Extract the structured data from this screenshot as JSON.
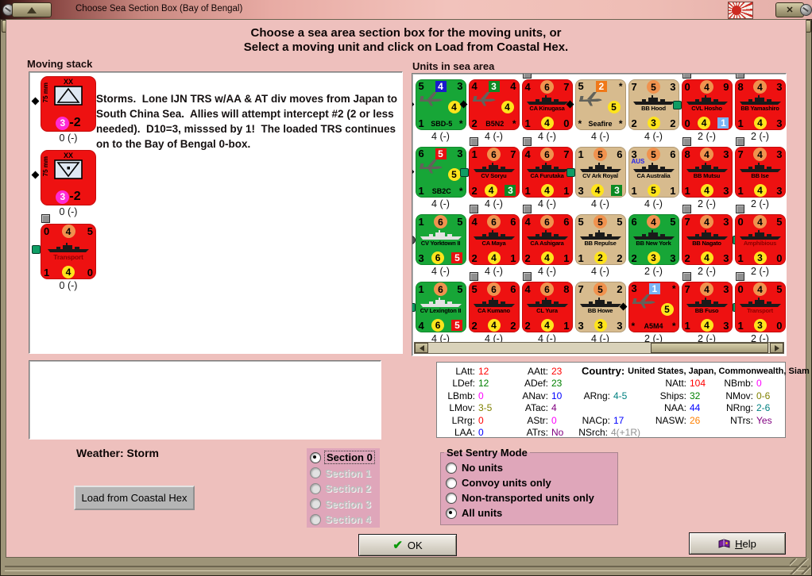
{
  "window": {
    "title": "Choose Sea Section Box (Bay of Bengal)"
  },
  "header": {
    "line1": "Choose a sea area section box for the moving units, or",
    "line2": "Select a moving unit and click on Load from Coastal Hex."
  },
  "moving_stack": {
    "label": "Moving stack",
    "description": "Storms.  Lone IJN TRS w/AA & AT div moves from Japan to South China Sea.  Allies will attempt intercept #2 (2 or less needed).  D10=3, misssed by 1!  The loaded TRS continues on to the Bay of Bengal 0-box.",
    "units": [
      {
        "kind": "ground",
        "bg": "red",
        "top": "XX",
        "side": "75 mm",
        "symbol": "aa",
        "val": "3",
        "suffix": "-2",
        "label": "0 (-)",
        "marks": [
          "diamond-left"
        ]
      },
      {
        "kind": "ground",
        "bg": "red",
        "top": "XX",
        "side": "75 mm",
        "symbol": "at",
        "val": "3",
        "suffix": "-2",
        "label": "0 (-)",
        "marks": [
          "diamond-left"
        ]
      },
      {
        "kind": "ship",
        "big": true,
        "bg": "red",
        "tl": "0",
        "tm": "4",
        "tr": "5",
        "name": "Transport",
        "name_color": "darkred",
        "bl": "1",
        "bm": "4",
        "br": "0",
        "label": "0 (-)",
        "marks": [
          "gray-square-top",
          "green-dot-left"
        ]
      }
    ]
  },
  "sea_area": {
    "label": "Units in sea area",
    "units": [
      {
        "kind": "plane",
        "bg": "green",
        "tl": "5",
        "tm": "4",
        "tm_badge": "navy-square",
        "tr": "3",
        "wing": "4",
        "bl": "1",
        "bname": "SBD-5",
        "br": "*",
        "label": "4 (-)",
        "marks": [
          "diamond-left"
        ]
      },
      {
        "kind": "plane",
        "bg": "red",
        "tl": "4",
        "tm": "3",
        "tm_badge": "green-square",
        "tr": "4",
        "wing": "4",
        "bl": "2",
        "bname": "B5N2",
        "br": "*",
        "label": "4 (-)",
        "marks": [
          "diamond-left"
        ]
      },
      {
        "kind": "ship",
        "bg": "red",
        "tl": "4",
        "tm": "6",
        "tr": "7",
        "name": "CA Kinugasa",
        "bl": "1",
        "bm": "4",
        "br": "0",
        "label": "4 (-)",
        "marks": [
          "gray-square-top"
        ]
      },
      {
        "kind": "plane",
        "bg": "tan",
        "tl": "5",
        "tm": "2",
        "tm_badge": "orange-square",
        "tr": "*",
        "wing": "5",
        "bl": "*",
        "bname": "Seafire",
        "br": "*",
        "label": "4 (-)",
        "marks": [
          "diamond-left"
        ]
      },
      {
        "kind": "ship",
        "bg": "tan",
        "tl": "7",
        "tm": "5",
        "tr": "3",
        "name": "BB Hood",
        "bl": "2",
        "bm": "3",
        "br": "2",
        "label": "4 (-)",
        "marks": []
      },
      {
        "kind": "ship",
        "bg": "red",
        "tl": "0",
        "tm": "4",
        "tr": "9",
        "name": "CVL Hosho",
        "bl": "0",
        "bm": "4",
        "br": "1",
        "br_badge": "lightblue-square",
        "label": "2 (-)",
        "marks": [
          "gray-square-top",
          "green-dot-left"
        ]
      },
      {
        "kind": "ship",
        "bg": "red",
        "tl": "8",
        "tm": "4",
        "tr": "3",
        "name": "BB Yamashiro",
        "bl": "1",
        "bm": "4",
        "br": "3",
        "label": "2 (-)",
        "marks": [
          "gray-square-top"
        ]
      },
      {
        "kind": "plane",
        "bg": "green",
        "tl": "6",
        "tm": "5",
        "tm_badge": "red-square",
        "tr": "3",
        "wing": "5",
        "bl": "1",
        "bname": "SB2C",
        "br": "*",
        "label": "4 (-)",
        "marks": [
          "diamond-left"
        ]
      },
      {
        "kind": "ship",
        "bg": "red",
        "tl": "1",
        "tm": "6",
        "tr": "7",
        "name": "CV Soryu",
        "bl": "2",
        "bm": "4",
        "br": "3",
        "br_badge": "green-square",
        "label": "4 (-)",
        "marks": [
          "gray-square-top",
          "green-dot-left"
        ]
      },
      {
        "kind": "ship",
        "bg": "red",
        "tl": "4",
        "tm": "6",
        "tr": "7",
        "name": "CA Furutaka",
        "bl": "1",
        "bm": "4",
        "br": "1",
        "label": "4 (-)",
        "marks": [
          "gray-square-top"
        ]
      },
      {
        "kind": "ship",
        "bg": "tan",
        "tl": "1",
        "tm": "5",
        "tr": "6",
        "name": "CV Ark Royal",
        "bl": "3",
        "bm": "4",
        "br": "3",
        "br_badge": "green-square",
        "label": "4 (-)",
        "marks": [
          "green-dot-left"
        ]
      },
      {
        "kind": "ship",
        "bg": "tan",
        "tl": "3",
        "tm": "5",
        "tr": "6",
        "name": "CA Australia",
        "extra": "AUS",
        "bl": "1",
        "bm": "5",
        "br": "1",
        "label": "4 (-)",
        "marks": []
      },
      {
        "kind": "ship",
        "bg": "red",
        "tl": "8",
        "tm": "4",
        "tr": "3",
        "name": "BB Mutsu",
        "bl": "1",
        "bm": "4",
        "br": "3",
        "label": "2 (-)",
        "marks": [
          "gray-square-top"
        ]
      },
      {
        "kind": "ship",
        "bg": "red",
        "tl": "7",
        "tm": "4",
        "tr": "3",
        "name": "BB Ise",
        "bl": "1",
        "bm": "4",
        "br": "3",
        "label": "2 (-)",
        "marks": [
          "gray-square-top"
        ]
      },
      {
        "kind": "ship",
        "bg": "green",
        "tl": "1",
        "tm": "6",
        "tr": "5",
        "name": "CV Yorktown II",
        "icon_light": true,
        "bl": "3",
        "bm": "6",
        "br": "5",
        "br_badge": "red-square",
        "label": "4 (-)",
        "marks": [
          "gray-dot-left"
        ]
      },
      {
        "kind": "ship",
        "bg": "red",
        "tl": "4",
        "tm": "6",
        "tr": "6",
        "name": "CA Maya",
        "bl": "2",
        "bm": "4",
        "br": "1",
        "label": "4 (-)",
        "marks": [
          "gray-square-top"
        ]
      },
      {
        "kind": "ship",
        "bg": "red",
        "tl": "4",
        "tm": "6",
        "tr": "6",
        "name": "CA Ashigara",
        "bl": "2",
        "bm": "4",
        "br": "1",
        "label": "4 (-)",
        "marks": [
          "gray-square-top"
        ]
      },
      {
        "kind": "ship",
        "bg": "tan",
        "tl": "5",
        "tm": "5",
        "tr": "5",
        "name": "BB Repulse",
        "bl": "1",
        "bm": "2",
        "br": "2",
        "label": "4 (-)",
        "marks": []
      },
      {
        "kind": "ship",
        "bg": "green",
        "tl": "6",
        "tm": "4",
        "tr": "5",
        "name": "BB New York",
        "bl": "2",
        "bm": "3",
        "br": "3",
        "label": "2 (-)",
        "marks": []
      },
      {
        "kind": "ship",
        "bg": "red",
        "tl": "7",
        "tm": "4",
        "tr": "3",
        "name": "BB Nagato",
        "bl": "2",
        "bm": "4",
        "br": "3",
        "label": "2 (-)",
        "marks": [
          "gray-square-top",
          "green-dot-right"
        ]
      },
      {
        "kind": "ship",
        "bg": "red",
        "tl": "0",
        "tm": "4",
        "tr": "5",
        "name": "Amphibious",
        "name_color": "darkred",
        "bl": "1",
        "bm": "3",
        "br": "0",
        "label": "2 (-)",
        "marks": [
          "gray-square-top"
        ]
      },
      {
        "kind": "ship",
        "bg": "green",
        "tl": "1",
        "tm": "6",
        "tr": "5",
        "name": "CV Lexington II",
        "icon_light": true,
        "bl": "4",
        "bm": "6",
        "br": "5",
        "br_badge": "red-square",
        "label": "4 (-)",
        "marks": [
          "green-dot-left"
        ]
      },
      {
        "kind": "ship",
        "bg": "red",
        "tl": "5",
        "tm": "6",
        "tr": "6",
        "name": "CA Kumano",
        "bl": "2",
        "bm": "4",
        "br": "2",
        "label": "4 (-)",
        "marks": [
          "gray-square-top"
        ]
      },
      {
        "kind": "ship",
        "bg": "red",
        "tl": "4",
        "tm": "6",
        "tr": "8",
        "name": "CL Yura",
        "bl": "2",
        "bm": "4",
        "br": "1",
        "label": "4 (-)",
        "marks": [
          "gray-square-top"
        ]
      },
      {
        "kind": "ship",
        "bg": "tan",
        "tl": "7",
        "tm": "5",
        "tr": "2",
        "name": "BB Howe",
        "bl": "3",
        "bm": "3",
        "br": "3",
        "label": "4 (-)",
        "marks": []
      },
      {
        "kind": "plane",
        "bg": "red",
        "tl": "3",
        "tm": "1",
        "tm_badge": "lightblue-square",
        "tr": "*",
        "wing": "5",
        "bl": "*",
        "bname": "A5M4",
        "br": "*",
        "label": "2 (-)",
        "marks": [
          "diamond-left"
        ]
      },
      {
        "kind": "ship",
        "bg": "red",
        "tl": "7",
        "tm": "4",
        "tr": "3",
        "name": "BB Fuso",
        "bl": "1",
        "bm": "4",
        "br": "3",
        "label": "2 (-)",
        "marks": [
          "gray-square-top",
          "green-dot-right"
        ]
      },
      {
        "kind": "ship",
        "bg": "red",
        "tl": "0",
        "tm": "4",
        "tr": "5",
        "name": "Transport",
        "name_color": "darkred",
        "bl": "1",
        "bm": "3",
        "br": "0",
        "label": "2 (-)",
        "marks": [
          "gray-square-top"
        ]
      }
    ]
  },
  "stats": {
    "country_label": "Country:",
    "country_value": "United States, Japan, Commonwealth, Siam",
    "items": [
      {
        "row": 1,
        "col": 1,
        "label": "LAtt:",
        "value": "12",
        "color": "#ff0000"
      },
      {
        "row": 1,
        "col": 2,
        "label": "AAtt:",
        "value": "23",
        "color": "#ff0000"
      },
      {
        "row": 2,
        "col": 1,
        "label": "LDef:",
        "value": "12",
        "color": "#008000"
      },
      {
        "row": 2,
        "col": 2,
        "label": "ADef:",
        "value": "23",
        "color": "#008000"
      },
      {
        "row": 2,
        "col": 4,
        "label": "NAtt:",
        "value": "104",
        "color": "#ff0000"
      },
      {
        "row": 2,
        "col": 5,
        "label": "NBmb:",
        "value": "0",
        "color": "#ff00ff"
      },
      {
        "row": 3,
        "col": 1,
        "label": "LBmb:",
        "value": "0",
        "color": "#ff00ff"
      },
      {
        "row": 3,
        "col": 2,
        "label": "ANav:",
        "value": "10",
        "color": "#0000ff"
      },
      {
        "row": 3,
        "col": 3,
        "label": "ARng:",
        "value": "4-5",
        "color": "#008080"
      },
      {
        "row": 3,
        "col": 4,
        "label": "Ships:",
        "value": "32",
        "color": "#008000"
      },
      {
        "row": 3,
        "col": 5,
        "label": "NMov:",
        "value": "0-6",
        "color": "#808000"
      },
      {
        "row": 4,
        "col": 1,
        "label": "LMov:",
        "value": "3-5",
        "color": "#808000"
      },
      {
        "row": 4,
        "col": 2,
        "label": "ATac:",
        "value": "4",
        "color": "#800080"
      },
      {
        "row": 4,
        "col": 4,
        "label": "NAA:",
        "value": "44",
        "color": "#0000ff"
      },
      {
        "row": 4,
        "col": 5,
        "label": "NRng:",
        "value": "2-6",
        "color": "#008080"
      },
      {
        "row": 5,
        "col": 1,
        "label": "LRrg:",
        "value": "0",
        "color": "#ff0000"
      },
      {
        "row": 5,
        "col": 2,
        "label": "AStr:",
        "value": "0",
        "color": "#ff00ff"
      },
      {
        "row": 5,
        "col": 3,
        "label": "NACp:",
        "value": "17",
        "color": "#0000ff"
      },
      {
        "row": 5,
        "col": 4,
        "label": "NASW:",
        "value": "26",
        "color": "#ff8000"
      },
      {
        "row": 5,
        "col": 5,
        "label": "NTrs:",
        "value": "Yes",
        "color": "#800080"
      },
      {
        "row": 6,
        "col": 1,
        "label": "LAA:",
        "value": "0",
        "color": "#0000ff"
      },
      {
        "row": 6,
        "col": 2,
        "label": "ATrs:",
        "value": "No",
        "color": "#800080"
      },
      {
        "row": 6,
        "col": 3,
        "label": "NSrch:",
        "value": "4(+1R)",
        "color": "#909090"
      }
    ]
  },
  "weather_label": "Weather: Storm",
  "sections": {
    "options": [
      "Section 0",
      "Section 1",
      "Section 2",
      "Section 3",
      "Section 4"
    ],
    "selected": 0,
    "enabled": [
      true,
      false,
      false,
      false,
      false
    ]
  },
  "sentry": {
    "legend": "Set Sentry Mode",
    "options": [
      "No units",
      "Convoy units only",
      "Non-transported units only",
      "All units"
    ],
    "selected": 3
  },
  "buttons": {
    "load": "Load from Coastal Hex",
    "ok": "OK",
    "help": "Help"
  },
  "colors": {
    "counter_red": "#ee1111",
    "counter_green": "#17a637",
    "counter_tan": "#d7bb8e",
    "badge_orange": "#f0924e",
    "badge_yellow": "#ffe41c",
    "badge_magenta": "#ff2bd4",
    "content_pink": "#eec0bd",
    "panel_pink": "#dfa6ba",
    "frame_khaki": "#9d9478"
  }
}
